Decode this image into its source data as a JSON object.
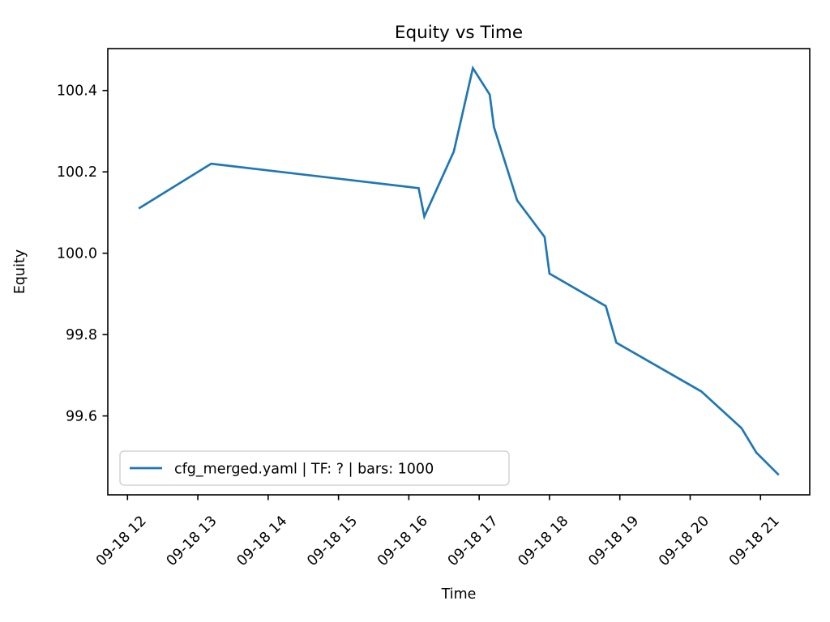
{
  "figure": {
    "background": "#ffffff"
  },
  "chart_data": {
    "type": "line",
    "title": "Equity vs Time",
    "xlabel": "Time",
    "ylabel": "Equity",
    "grid": false,
    "legend_position": "lower left",
    "xlim": [
      11.72,
      21.7
    ],
    "ylim": [
      99.406,
      100.503
    ],
    "x_ticks": [
      {
        "value": 12,
        "label": "09-18 12"
      },
      {
        "value": 13,
        "label": "09-18 13"
      },
      {
        "value": 14,
        "label": "09-18 14"
      },
      {
        "value": 15,
        "label": "09-18 15"
      },
      {
        "value": 16,
        "label": "09-18 16"
      },
      {
        "value": 17,
        "label": "09-18 17"
      },
      {
        "value": 18,
        "label": "09-18 18"
      },
      {
        "value": 19,
        "label": "09-18 19"
      },
      {
        "value": 20,
        "label": "09-18 20"
      },
      {
        "value": 21,
        "label": "09-18 21"
      }
    ],
    "x_tick_rotation": 45,
    "y_ticks": [
      {
        "value": 99.6,
        "label": "99.6"
      },
      {
        "value": 99.8,
        "label": "99.8"
      },
      {
        "value": 100.0,
        "label": "100.0"
      },
      {
        "value": 100.2,
        "label": "100.2"
      },
      {
        "value": 100.4,
        "label": "100.4"
      }
    ],
    "series": [
      {
        "name": "cfg_merged.yaml | TF: ? | bars: 1000",
        "color": "#1f77b4",
        "x": [
          12.16,
          13.19,
          16.14,
          16.22,
          16.64,
          16.91,
          17.15,
          17.21,
          17.54,
          17.93,
          18.0,
          18.8,
          18.95,
          20.16,
          20.73,
          20.94,
          21.26
        ],
        "y": [
          100.11,
          100.22,
          100.16,
          100.09,
          100.25,
          100.455,
          100.39,
          100.31,
          100.13,
          100.04,
          99.95,
          99.87,
          99.78,
          99.66,
          99.57,
          99.51,
          99.455
        ]
      }
    ],
    "colors": {
      "line": "#1f77b4",
      "spine": "#000000",
      "legend_border": "#cccccc",
      "background": "#ffffff"
    }
  }
}
